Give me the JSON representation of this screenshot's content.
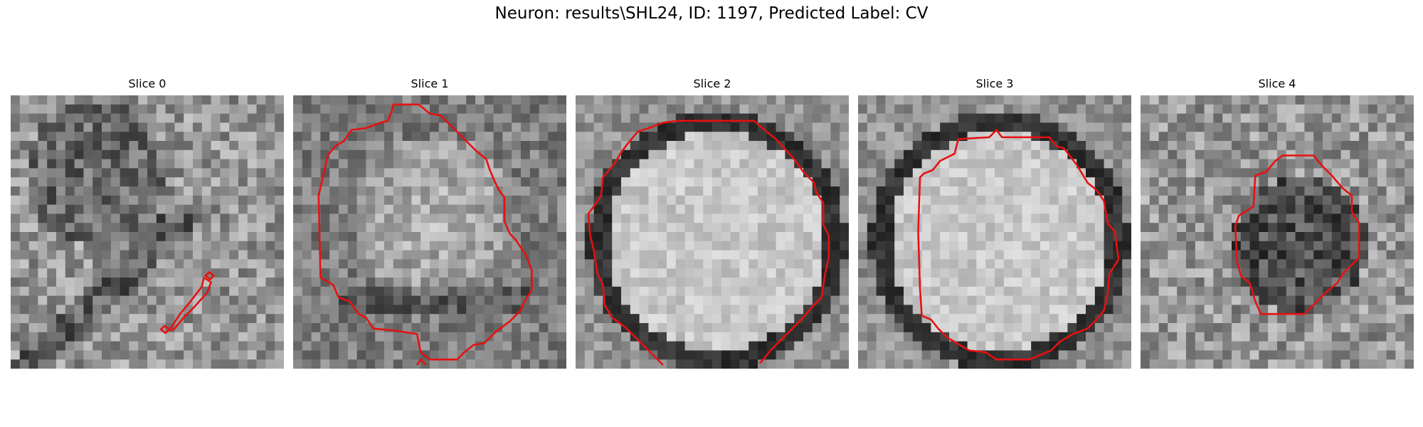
{
  "figure": {
    "title": "Neuron: results\\SHL24, ID: 1197, Predicted Label: CV",
    "contour_color": "#e81010"
  },
  "panels": [
    {
      "title": "Slice 0",
      "texture": "dim-membrane-diagonal"
    },
    {
      "title": "Slice 1",
      "texture": "blob-light-center"
    },
    {
      "title": "Slice 2",
      "texture": "bright-disk-dark-ring"
    },
    {
      "title": "Slice 3",
      "texture": "bright-disk-dark-ring"
    },
    {
      "title": "Slice 4",
      "texture": "dark-blob"
    }
  ]
}
